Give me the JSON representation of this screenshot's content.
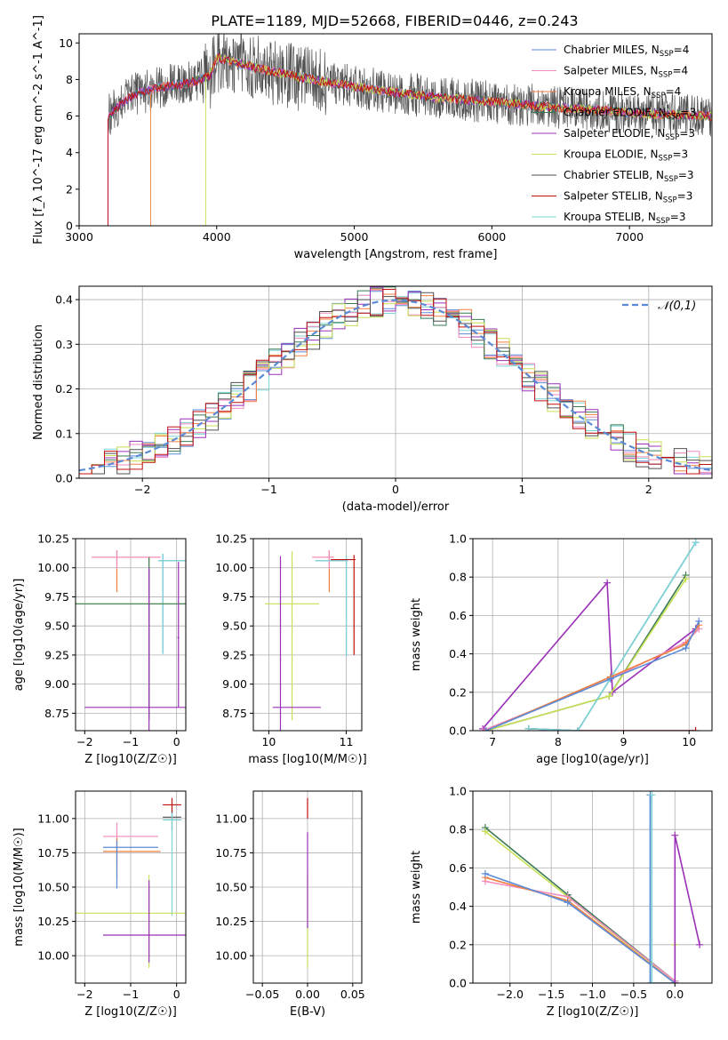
{
  "figure": {
    "title": "PLATE=1189, MJD=52668, FIBERID=0446, z=0.243",
    "series": [
      {
        "name": "Chabrier MILES, N_SSP=4",
        "color": "#5b8bd6"
      },
      {
        "name": "Salpeter MILES, N_SSP=4",
        "color": "#f28bbf"
      },
      {
        "name": "Kroupa MILES, N_SSP=4",
        "color": "#f08040"
      },
      {
        "name": "Chabrier ELODIE, N_SSP=3",
        "color": "#3a7a56"
      },
      {
        "name": "Salpeter ELODIE, N_SSP=3",
        "color": "#9b30b8"
      },
      {
        "name": "Kroupa ELODIE, N_SSP=3",
        "color": "#c8e055"
      },
      {
        "name": "Chabrier STELIB, N_SSP=3",
        "color": "#505050"
      },
      {
        "name": "Salpeter STELIB, N_SSP=3",
        "color": "#c01010"
      },
      {
        "name": "Kroupa STELIB, N_SSP=3",
        "color": "#7fd4d4"
      }
    ]
  },
  "chart_data": [
    {
      "id": "spectrum",
      "type": "line",
      "xlabel": "wavelength [Angstrom, rest frame]",
      "ylabel": "Flux [f_λ 10^-17 erg cm^-2 s^-1 A^-1]",
      "xlim": [
        3000,
        7600
      ],
      "ylim": [
        0,
        10.5
      ],
      "xticks": [
        3000,
        4000,
        5000,
        6000,
        7000
      ],
      "yticks": [
        0,
        2,
        4,
        6,
        8,
        10
      ],
      "continuum": {
        "x": [
          3210,
          3300,
          3400,
          3600,
          3800,
          3950,
          4000,
          4100,
          4300,
          4500,
          4700,
          5000,
          5300,
          5600,
          6000,
          6400,
          6800,
          7200,
          7600
        ],
        "y": [
          6.0,
          6.6,
          7.2,
          7.6,
          7.8,
          8.2,
          9.2,
          9.0,
          8.6,
          8.3,
          8.0,
          7.6,
          7.3,
          7.0,
          6.8,
          6.5,
          6.3,
          6.1,
          6.0
        ]
      },
      "series_start_wavelength": [
        3210,
        3210,
        3520,
        3210,
        3210,
        3920,
        3210,
        3210,
        3210
      ],
      "grid": false
    },
    {
      "id": "residuals",
      "type": "histogram",
      "xlabel": "(data-model)/error",
      "ylabel": "Normed distribution",
      "xlim": [
        -2.5,
        2.5
      ],
      "ylim": [
        0,
        0.43
      ],
      "xticks": [
        -2,
        -1,
        0,
        1,
        2
      ],
      "yticks": [
        0.0,
        0.1,
        0.2,
        0.3,
        0.4
      ],
      "reference": {
        "label": "𝒩(0,1)",
        "mean": 0,
        "sigma": 1,
        "color": "#5b8bd6"
      },
      "bin_width": 0.1,
      "grid": true
    },
    {
      "id": "age_vs_Z",
      "type": "errorbar",
      "xlabel": "Z [log10(Z/Z☉)]",
      "ylabel": "age  [log10(age/yr)]",
      "xlim": [
        -2.2,
        0.2
      ],
      "ylim": [
        8.6,
        10.25
      ],
      "xticks": [
        -2,
        -1,
        0
      ],
      "yticks": [
        8.75,
        9.0,
        9.25,
        9.5,
        9.75,
        10.0,
        10.25
      ],
      "points": [
        {
          "s": 2,
          "x": -1.3,
          "xe": [
            0.55,
            0.95
          ],
          "y": 10.09,
          "ye": [
            0.3,
            0.06
          ]
        },
        {
          "s": 1,
          "x": -1.3,
          "xe": [
            0.55,
            0.95
          ],
          "y": 10.09,
          "ye": [
            0.1,
            0.06
          ]
        },
        {
          "s": 0,
          "x": -0.3,
          "xe": [
            0.1,
            0.5
          ],
          "y": 10.06,
          "ye": [
            0.8,
            0.06
          ]
        },
        {
          "s": 8,
          "x": -0.3,
          "xe": [
            0.1,
            0.5
          ],
          "y": 10.06,
          "ye": [
            0.8,
            0.06
          ]
        },
        {
          "s": 5,
          "x": -0.6,
          "xe": [
            1.6,
            1.3
          ],
          "y": 9.69,
          "ye": [
            1.0,
            0.4
          ]
        },
        {
          "s": 3,
          "x": -0.6,
          "xe": [
            1.6,
            1.3
          ],
          "y": 9.69,
          "ye": [
            1.0,
            0.4
          ]
        },
        {
          "s": 4,
          "x": -0.6,
          "xe": [
            1.4,
            0.9
          ],
          "y": 8.8,
          "ye": [
            0.2,
            1.2
          ]
        },
        {
          "s": 4,
          "x": 0.04,
          "xe": [
            0.02,
            0.02
          ],
          "y": 9.4,
          "ye": [
            0.6,
            0.65
          ]
        }
      ],
      "grid": true
    },
    {
      "id": "age_vs_mass",
      "type": "errorbar",
      "xlabel": "mass [log10(M/M☉)]",
      "ylabel": "",
      "xlim": [
        9.8,
        11.2
      ],
      "ylim": [
        8.6,
        10.25
      ],
      "xticks": [
        10,
        11
      ],
      "yticks": [
        8.75,
        9.0,
        9.25,
        9.5,
        9.75,
        10.0,
        10.25
      ],
      "points": [
        {
          "s": 2,
          "x": 10.78,
          "xe": [
            0.22,
            0.06
          ],
          "y": 10.09,
          "ye": [
            0.3,
            0.06
          ]
        },
        {
          "s": 1,
          "x": 10.78,
          "xe": [
            0.22,
            0.06
          ],
          "y": 10.09,
          "ye": [
            0.1,
            0.06
          ]
        },
        {
          "s": 0,
          "x": 11.0,
          "xe": [
            0.4,
            0.02
          ],
          "y": 10.06,
          "ye": [
            0.82,
            0.04
          ]
        },
        {
          "s": 8,
          "x": 11.0,
          "xe": [
            0.4,
            0.02
          ],
          "y": 10.06,
          "ye": [
            0.82,
            0.04
          ]
        },
        {
          "s": 7,
          "x": 11.1,
          "xe": [
            0.3,
            0.02
          ],
          "y": 10.07,
          "ye": [
            0.82,
            0.04
          ]
        },
        {
          "s": 5,
          "x": 10.3,
          "xe": [
            0.35,
            0.35
          ],
          "y": 9.69,
          "ye": [
            1.0,
            0.45
          ]
        },
        {
          "s": 4,
          "x": 10.15,
          "xe": [
            0.1,
            0.52
          ],
          "y": 8.8,
          "ye": [
            0.2,
            1.3
          ]
        }
      ],
      "grid": true
    },
    {
      "id": "weight_vs_age",
      "type": "line",
      "xlabel": "age  [log10(age/yr)]",
      "ylabel": "mass weight",
      "xlim": [
        6.7,
        10.35
      ],
      "ylim": [
        0,
        1
      ],
      "xticks": [
        7,
        8,
        9,
        10
      ],
      "yticks": [
        0.0,
        0.2,
        0.4,
        0.6,
        0.8,
        1.0
      ],
      "lines": [
        {
          "s": 4,
          "x": [
            6.85,
            8.75,
            8.83,
            10.1
          ],
          "y": [
            0.01,
            0.77,
            0.2,
            0.53
          ]
        },
        {
          "s": 7,
          "x": [
            7.55,
            8.3,
            10.1
          ],
          "y": [
            0.01,
            0.0,
            0.0
          ]
        },
        {
          "s": 3,
          "x": [
            6.9,
            8.78,
            9.95
          ],
          "y": [
            0.0,
            0.18,
            0.81
          ]
        },
        {
          "s": 5,
          "x": [
            6.9,
            8.78,
            9.95
          ],
          "y": [
            0.0,
            0.18,
            0.79
          ]
        },
        {
          "s": 0,
          "x": [
            7.55,
            8.3,
            10.1
          ],
          "y": [
            0.01,
            0.0,
            0.98
          ]
        },
        {
          "s": 8,
          "x": [
            7.55,
            8.3,
            10.1
          ],
          "y": [
            0.01,
            0.0,
            0.98
          ]
        },
        {
          "s": 1,
          "x": [
            6.85,
            8.8,
            9.95,
            10.15
          ],
          "y": [
            0.0,
            0.27,
            0.46,
            0.53
          ]
        },
        {
          "s": 2,
          "x": [
            6.9,
            8.8,
            9.95,
            10.15
          ],
          "y": [
            0.0,
            0.28,
            0.45,
            0.55
          ]
        },
        {
          "s": 0,
          "x": [
            6.9,
            8.8,
            9.95,
            10.15
          ],
          "y": [
            0.0,
            0.27,
            0.43,
            0.57
          ]
        }
      ],
      "grid": true
    },
    {
      "id": "mass_vs_Z",
      "type": "errorbar",
      "xlabel": "Z [log10(Z/Z☉)]",
      "ylabel": "mass [log10(M/M☉)]",
      "xlim": [
        -2.2,
        0.2
      ],
      "ylim": [
        9.8,
        11.2
      ],
      "xticks": [
        -2,
        -1,
        0
      ],
      "yticks": [
        10.0,
        10.25,
        10.5,
        10.75,
        11.0
      ],
      "points": [
        {
          "s": 1,
          "x": -1.3,
          "xe": [
            0.3,
            0.9
          ],
          "y": 10.87,
          "ye": [
            0.2,
            0.1
          ]
        },
        {
          "s": 2,
          "x": -1.3,
          "xe": [
            0.3,
            0.95
          ],
          "y": 10.76,
          "ye": [
            0.2,
            0.1
          ]
        },
        {
          "s": 0,
          "x": -1.3,
          "xe": [
            0.3,
            0.9
          ],
          "y": 10.79,
          "ye": [
            0.3,
            0.05
          ]
        },
        {
          "s": 6,
          "x": -0.1,
          "xe": [
            0.2,
            0.2
          ],
          "y": 11.01,
          "ye": [
            0.1,
            0.05
          ]
        },
        {
          "s": 7,
          "x": -0.1,
          "xe": [
            0.2,
            0.2
          ],
          "y": 11.1,
          "ye": [
            0.05,
            0.05
          ]
        },
        {
          "s": 8,
          "x": -0.1,
          "xe": [
            0.2,
            0.2
          ],
          "y": 10.99,
          "ye": [
            0.7,
            0.05
          ]
        },
        {
          "s": 5,
          "x": -0.6,
          "xe": [
            1.6,
            0.8
          ],
          "y": 10.31,
          "ye": [
            0.4,
            0.28
          ]
        },
        {
          "s": 4,
          "x": -0.6,
          "xe": [
            1.0,
            0.8
          ],
          "y": 10.15,
          "ye": [
            0.2,
            0.4
          ]
        }
      ],
      "grid": true
    },
    {
      "id": "mass_vs_ebv",
      "type": "errorbar",
      "xlabel": "E(B-V)",
      "ylabel": "",
      "xlim": [
        -0.06,
        0.06
      ],
      "ylim": [
        9.8,
        11.2
      ],
      "xticks": [
        -0.05,
        0.0,
        0.05
      ],
      "yticks": [
        10.0,
        10.25,
        10.5,
        10.75,
        11.0
      ],
      "points": [
        {
          "s": 7,
          "x": 0.0,
          "xe": [
            0,
            0
          ],
          "y": 11.05,
          "ye": [
            0.05,
            0.1
          ]
        },
        {
          "s": 5,
          "x": 0.0,
          "xe": [
            0,
            0
          ],
          "y": 10.31,
          "ye": [
            0.4,
            0.3
          ]
        },
        {
          "s": 4,
          "x": 0.0,
          "xe": [
            0,
            0
          ],
          "y": 10.6,
          "ye": [
            0.4,
            0.3
          ]
        }
      ],
      "grid": true
    },
    {
      "id": "weight_vs_Z",
      "type": "line",
      "xlabel": "Z [log10(Z/Z☉)]",
      "ylabel": "mass weight",
      "xlim": [
        -2.45,
        0.45
      ],
      "ylim": [
        0,
        1
      ],
      "xticks": [
        -2.0,
        -1.5,
        -1.0,
        -0.5,
        0.0
      ],
      "yticks": [
        0.0,
        0.2,
        0.4,
        0.6,
        0.8,
        1.0
      ],
      "lines": [
        {
          "s": 3,
          "x": [
            -2.3,
            -1.3,
            0.0
          ],
          "y": [
            0.81,
            0.46,
            0.01
          ]
        },
        {
          "s": 5,
          "x": [
            -2.3,
            -1.3,
            0.0,
            0.0
          ],
          "y": [
            0.79,
            0.45,
            0.0,
            0.2
          ]
        },
        {
          "s": 1,
          "x": [
            -2.3,
            -1.3,
            0.0
          ],
          "y": [
            0.53,
            0.45,
            0.01
          ]
        },
        {
          "s": 2,
          "x": [
            -2.3,
            -1.3,
            0.0
          ],
          "y": [
            0.55,
            0.43,
            0.0
          ]
        },
        {
          "s": 0,
          "x": [
            -2.3,
            -1.3,
            0.0
          ],
          "y": [
            0.57,
            0.42,
            0.0
          ]
        },
        {
          "s": 0,
          "x": [
            -0.3,
            -0.3,
            0.0
          ],
          "y": [
            0.98,
            0.0,
            0.0
          ]
        },
        {
          "s": 8,
          "x": [
            -0.28,
            -0.28,
            0.0
          ],
          "y": [
            0.98,
            0.0,
            0.0
          ]
        },
        {
          "s": 4,
          "x": [
            0.0,
            0.0,
            0.3
          ],
          "y": [
            0.0,
            0.77,
            0.2
          ]
        }
      ],
      "grid": true
    }
  ]
}
